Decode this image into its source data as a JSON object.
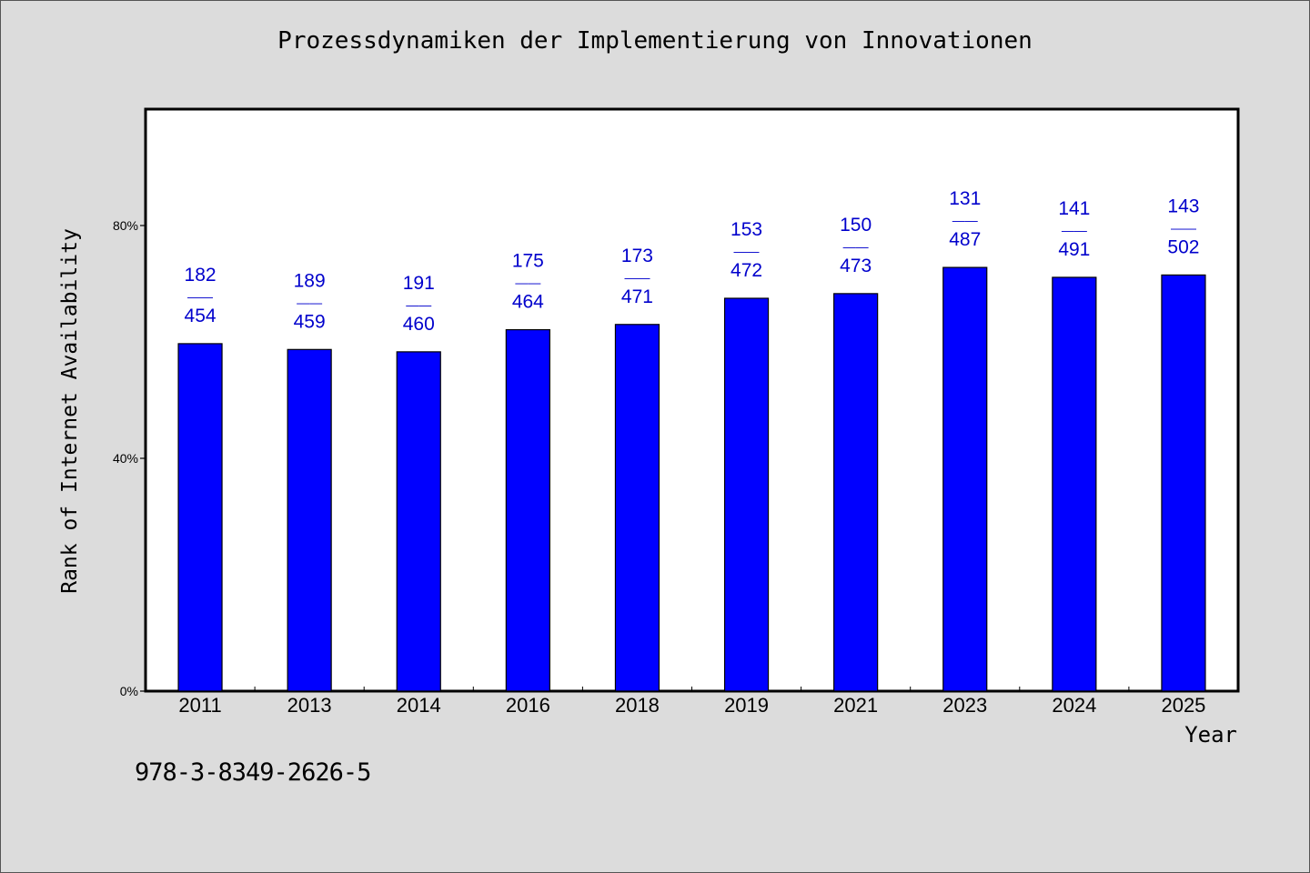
{
  "title": "Prozessdynamiken der Implementierung von Innovationen",
  "footer_code": "978-3-8349-2626-5",
  "colors": {
    "background": "#dcdcdc",
    "plot_area": "#ffffff",
    "bar_fill": "#0000ff",
    "label_color": "#0000cc"
  },
  "chart_data": {
    "type": "bar",
    "xlabel": "Year",
    "ylabel": "Rank of Internet Availability",
    "ylim": [
      0,
      100
    ],
    "yticks": [
      0,
      40,
      80
    ],
    "ytick_labels": [
      "0%",
      "40%",
      "80%"
    ],
    "categories": [
      "2011",
      "2013",
      "2014",
      "2016",
      "2018",
      "2019",
      "2021",
      "2023",
      "2024",
      "2025"
    ],
    "values": [
      59.7,
      58.7,
      58.3,
      62.1,
      63.0,
      67.5,
      68.3,
      72.8,
      71.1,
      71.5
    ],
    "labels_top": [
      "182",
      "189",
      "191",
      "175",
      "173",
      "153",
      "150",
      "131",
      "141",
      "143"
    ],
    "labels_sep": "——",
    "labels_bottom": [
      "454",
      "459",
      "460",
      "464",
      "471",
      "472",
      "473",
      "487",
      "491",
      "502"
    ],
    "grid": false,
    "legend": "none"
  }
}
